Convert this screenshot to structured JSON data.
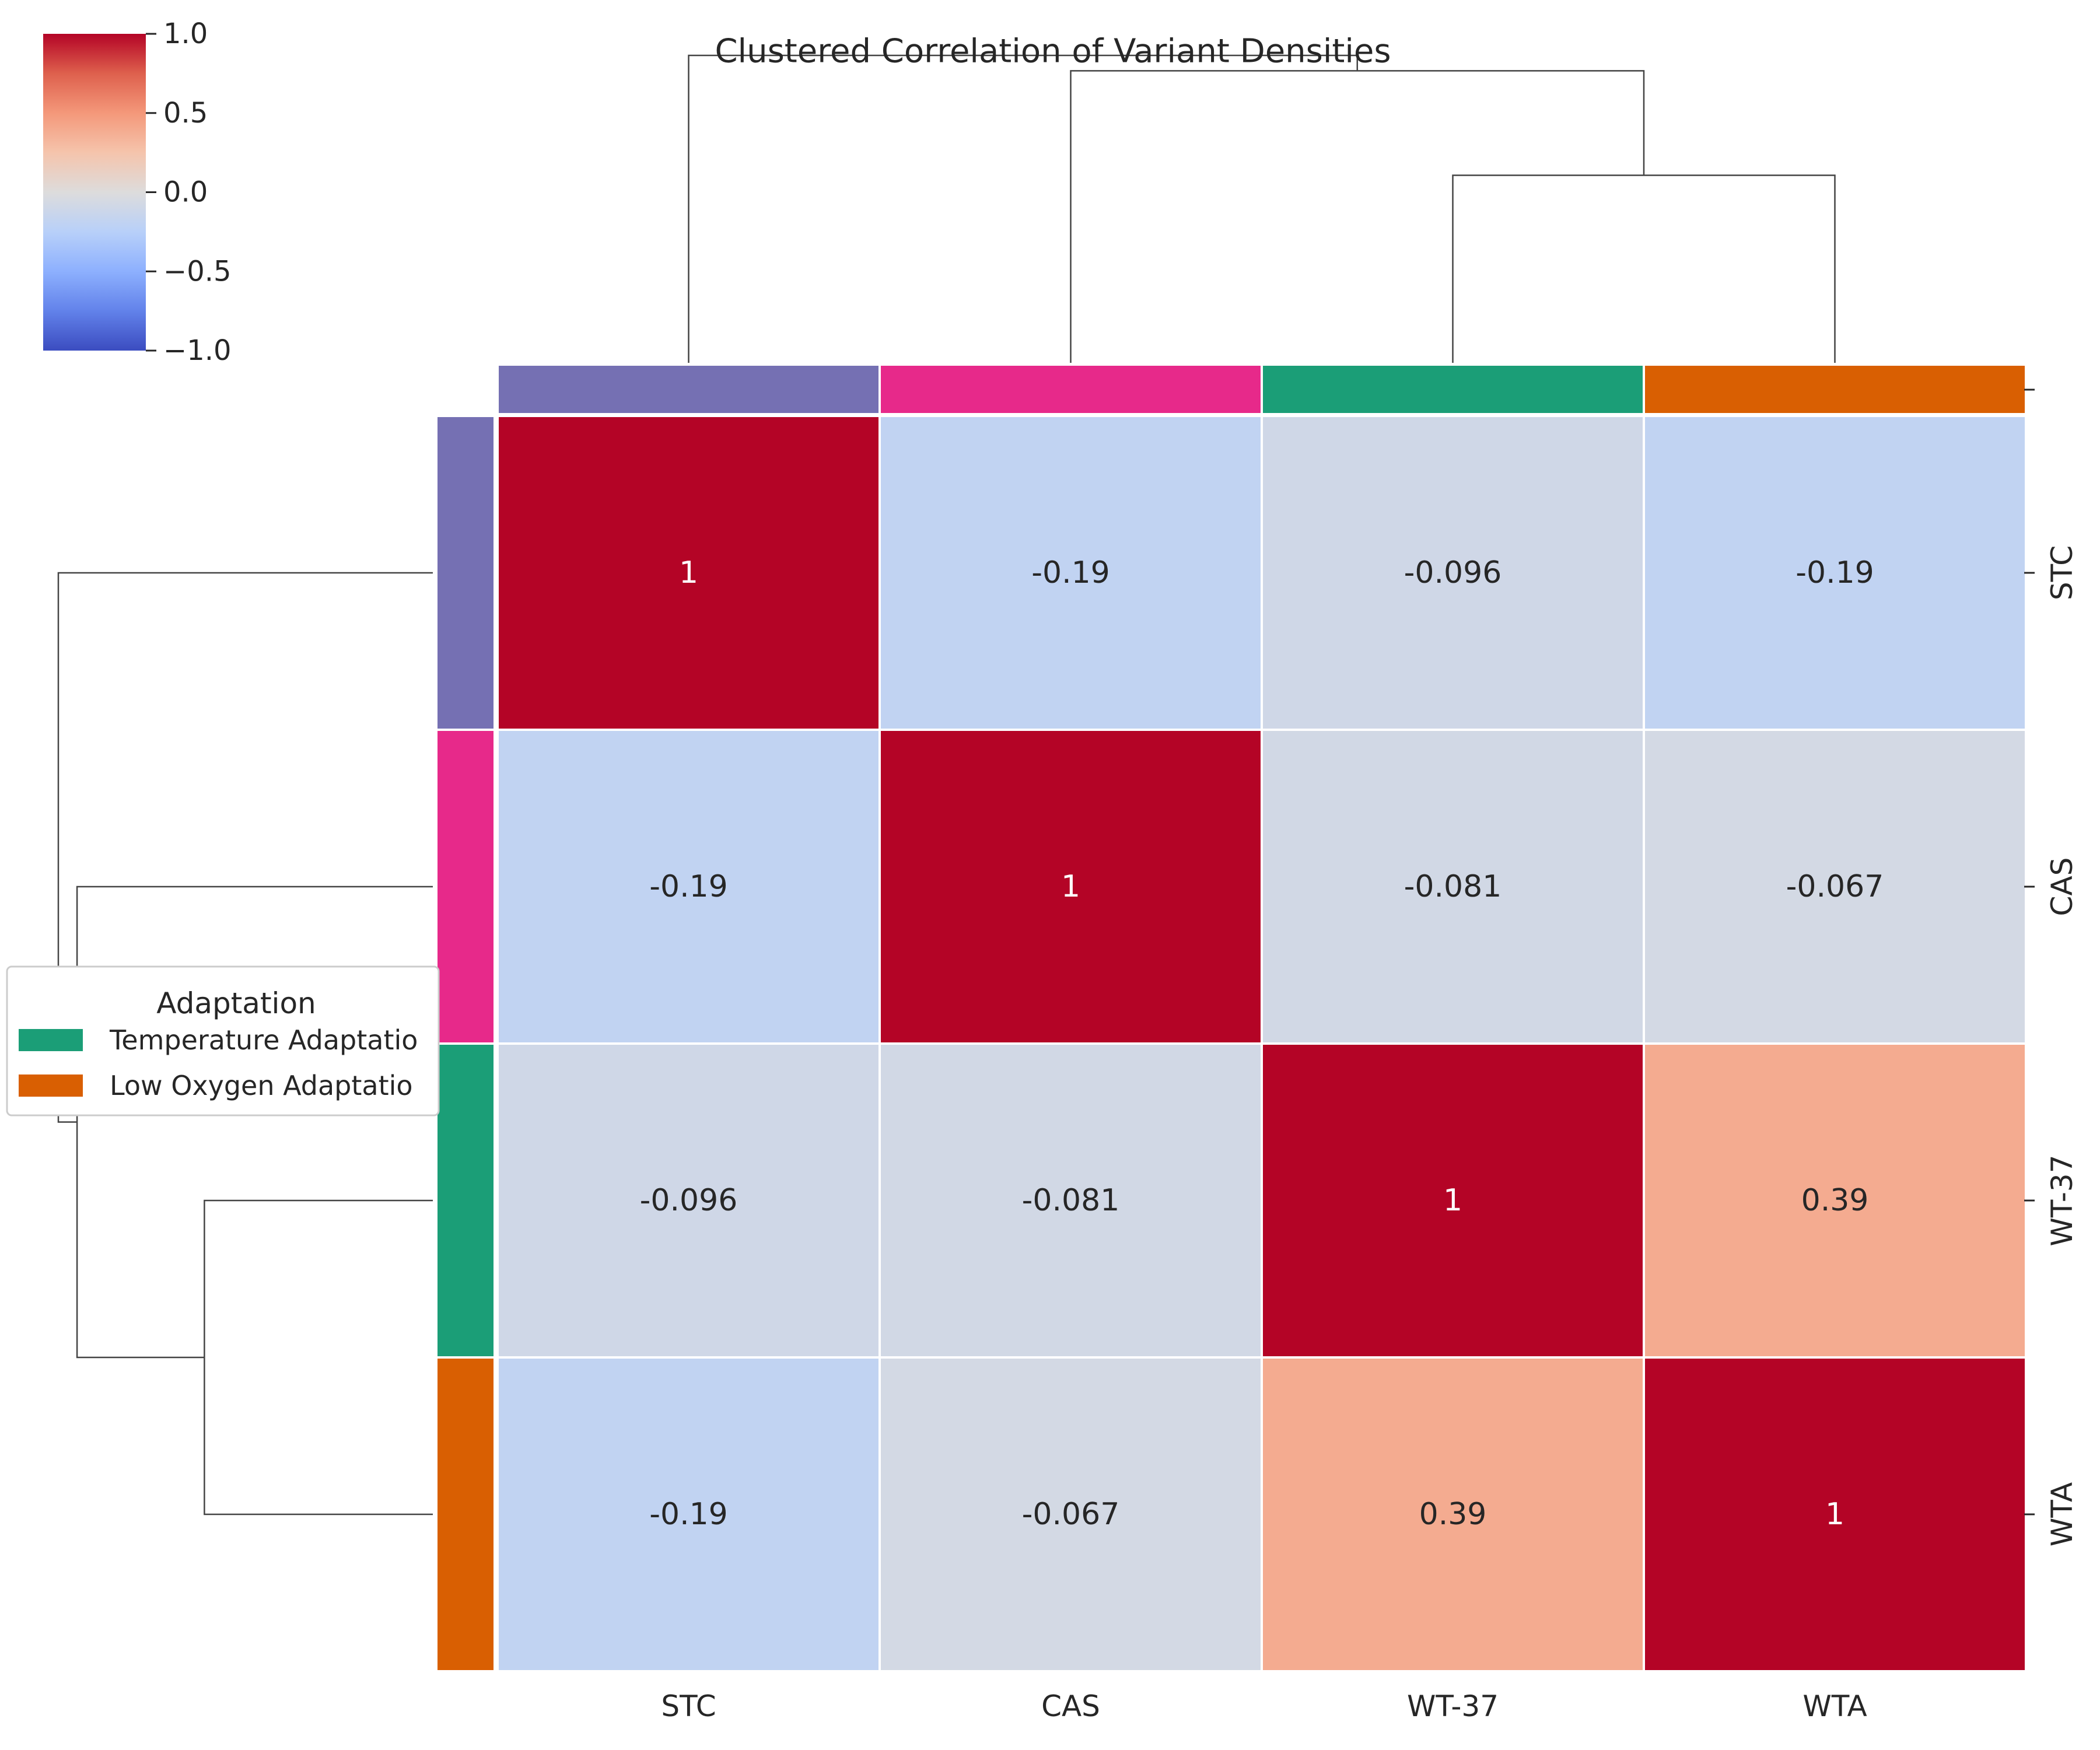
{
  "chart_data": {
    "type": "heatmap",
    "title": "Clustered Correlation of Variant Densities",
    "xlabel": "",
    "ylabel": "",
    "labels": [
      "STC",
      "CAS",
      "WT-37",
      "WTA"
    ],
    "values": [
      [
        1,
        -0.19,
        -0.096,
        -0.19
      ],
      [
        -0.19,
        1,
        -0.081,
        -0.067
      ],
      [
        -0.096,
        -0.081,
        1,
        0.39
      ],
      [
        -0.19,
        -0.067,
        0.39,
        1
      ]
    ],
    "cell_text": [
      [
        "1",
        "-0.19",
        "-0.096",
        "-0.19"
      ],
      [
        "-0.19",
        "1",
        "-0.081",
        "-0.067"
      ],
      [
        "-0.096",
        "-0.081",
        "1",
        "0.39"
      ],
      [
        "-0.19",
        "-0.067",
        "0.39",
        "1"
      ]
    ],
    "color_range": [
      -1,
      1
    ],
    "colormap": "coolwarm",
    "colorbar_ticks": [
      "1.0",
      "0.5",
      "0.0",
      "−0.5",
      "−1.0"
    ],
    "colorbar_tick_values": [
      1,
      0.5,
      0,
      -0.5,
      -1
    ],
    "group_colors": [
      "#7570b3",
      "#e7298a",
      "#1b9e77",
      "#d95f02"
    ],
    "legend": {
      "title": "Adaptation",
      "placement": "left",
      "entries": [
        {
          "label": "Temperature Adaptatio",
          "color": "#1b9e77"
        },
        {
          "label": "Low Oxygen Adaptatio",
          "color": "#d95f02"
        }
      ]
    },
    "cluster_order": [
      "STC",
      "CAS",
      "WT-37",
      "WTA"
    ],
    "linkage": [
      {
        "members": [
          "WT-37",
          "WTA"
        ],
        "height": 0.61
      },
      {
        "members": [
          "CAS",
          "WT-37",
          "WTA"
        ],
        "height": 0.95
      },
      {
        "members": [
          "STC",
          "CAS",
          "WT-37",
          "WTA"
        ],
        "height": 1.0
      }
    ]
  }
}
